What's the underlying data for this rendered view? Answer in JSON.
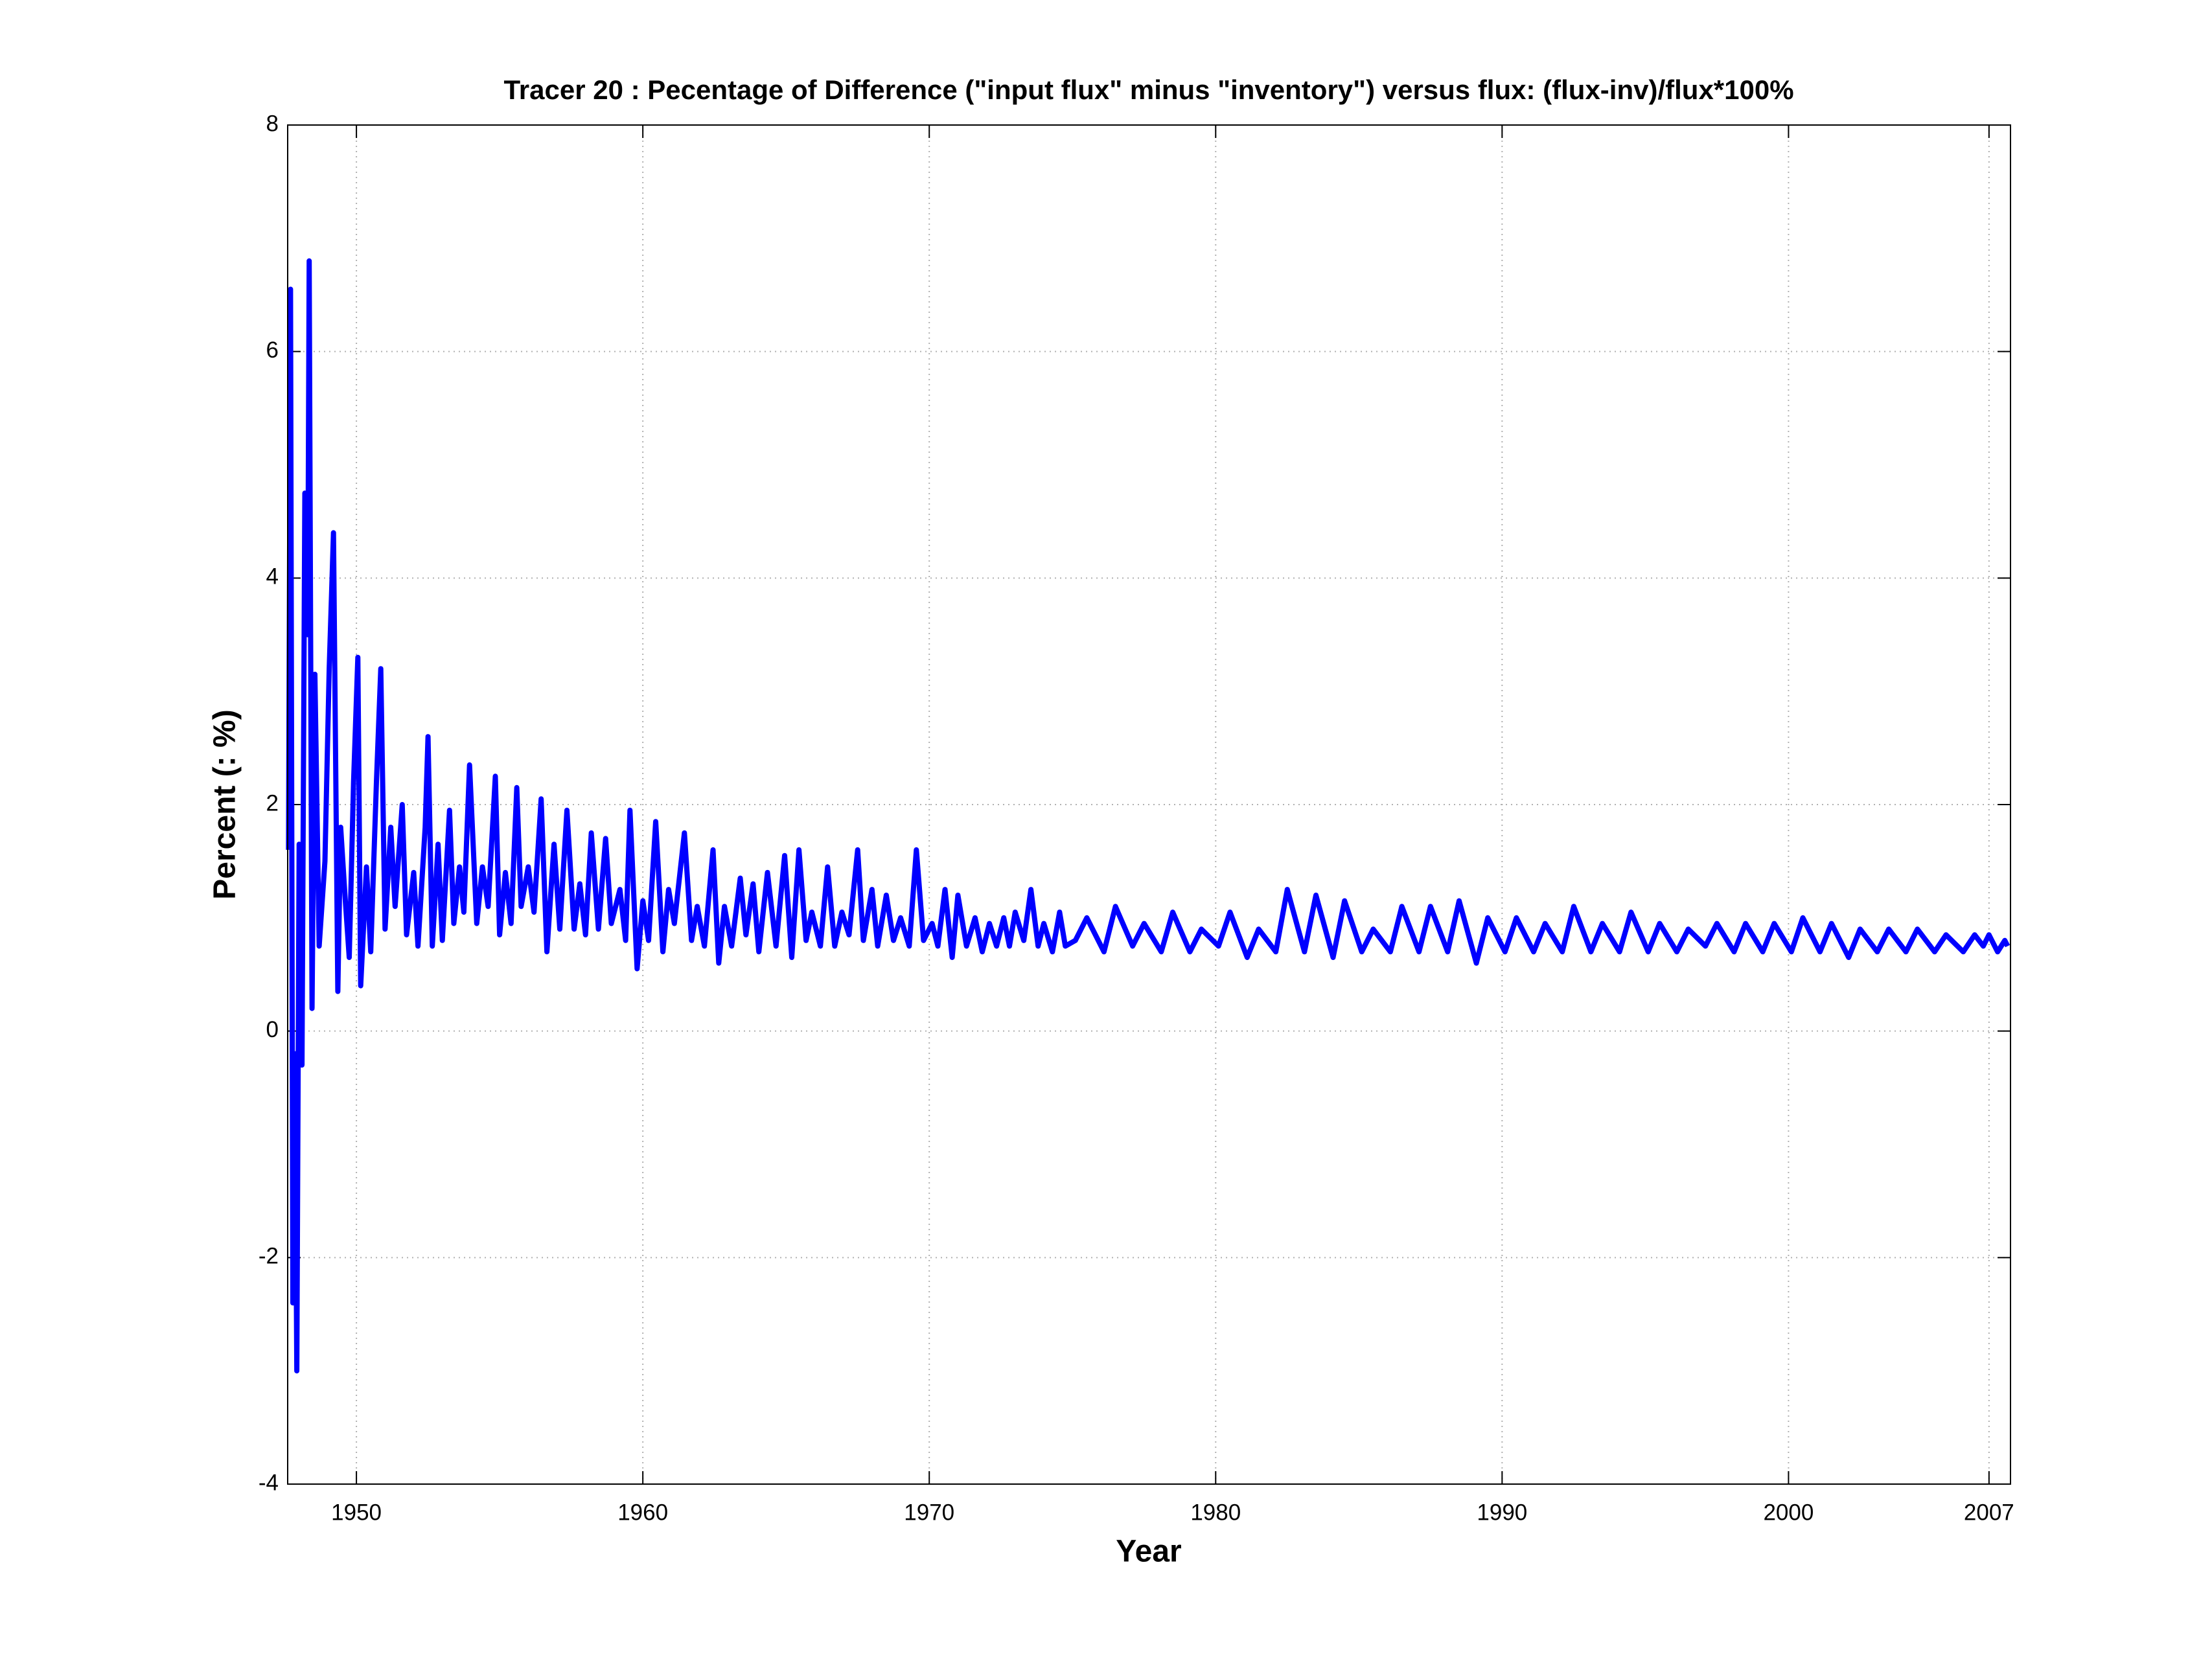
{
  "chart_data": {
    "type": "line",
    "title": "Tracer 20 : Pecentage of Difference (\"input flux\" minus \"inventory\") versus flux: (flux-inv)/flux*100%",
    "x_label": "Year",
    "y_label": "Percent (: %)",
    "xlim": [
      1947.6,
      2007.75
    ],
    "ylim": [
      -4,
      8
    ],
    "xticks": [
      1950,
      1960,
      1970,
      1980,
      1990,
      2000,
      2007
    ],
    "yticks": [
      -4,
      -2,
      0,
      2,
      4,
      6,
      8
    ],
    "grid": true,
    "series": [
      {
        "color": "#0000ff",
        "x": [
          1947.63,
          1947.7,
          1947.78,
          1947.85,
          1947.92,
          1948.0,
          1948.1,
          1948.2,
          1948.3,
          1948.35,
          1948.45,
          1948.55,
          1948.7,
          1948.9,
          1949.05,
          1949.2,
          1949.35,
          1949.45,
          1949.6,
          1949.75,
          1949.9,
          1950.05,
          1950.15,
          1950.35,
          1950.5,
          1950.7,
          1950.85,
          1951.0,
          1951.2,
          1951.35,
          1951.6,
          1951.75,
          1952.0,
          1952.15,
          1952.4,
          1952.5,
          1952.65,
          1952.85,
          1953.0,
          1953.25,
          1953.4,
          1953.6,
          1953.75,
          1953.95,
          1954.2,
          1954.4,
          1954.6,
          1954.85,
          1955.0,
          1955.2,
          1955.4,
          1955.6,
          1955.75,
          1956.0,
          1956.2,
          1956.45,
          1956.65,
          1956.9,
          1957.1,
          1957.35,
          1957.6,
          1957.8,
          1958.0,
          1958.2,
          1958.45,
          1958.7,
          1958.9,
          1959.2,
          1959.4,
          1959.55,
          1959.8,
          1960.0,
          1960.2,
          1960.45,
          1960.7,
          1960.9,
          1961.1,
          1961.45,
          1961.7,
          1961.9,
          1962.15,
          1962.45,
          1962.65,
          1962.85,
          1963.1,
          1963.4,
          1963.6,
          1963.85,
          1964.05,
          1964.35,
          1964.65,
          1964.95,
          1965.2,
          1965.45,
          1965.7,
          1965.9,
          1966.2,
          1966.45,
          1966.7,
          1966.95,
          1967.2,
          1967.5,
          1967.7,
          1968.0,
          1968.2,
          1968.5,
          1968.75,
          1969.0,
          1969.3,
          1969.55,
          1969.8,
          1970.1,
          1970.3,
          1970.55,
          1970.8,
          1971.0,
          1971.3,
          1971.6,
          1971.85,
          1972.1,
          1972.35,
          1972.6,
          1972.8,
          1973.0,
          1973.3,
          1973.55,
          1973.8,
          1974.0,
          1974.3,
          1974.55,
          1974.75,
          1975.1,
          1975.5,
          1976.1,
          1976.5,
          1977.1,
          1977.5,
          1978.1,
          1978.5,
          1979.1,
          1979.5,
          1980.1,
          1980.5,
          1981.1,
          1981.5,
          1982.1,
          1982.5,
          1983.1,
          1983.5,
          1984.1,
          1984.5,
          1985.1,
          1985.5,
          1986.1,
          1986.5,
          1987.1,
          1987.5,
          1988.1,
          1988.5,
          1989.1,
          1989.5,
          1990.1,
          1990.5,
          1991.1,
          1991.5,
          1992.1,
          1992.5,
          1993.1,
          1993.5,
          1994.1,
          1994.5,
          1995.1,
          1995.5,
          1996.1,
          1996.5,
          1997.1,
          1997.5,
          1998.1,
          1998.5,
          1999.1,
          1999.5,
          2000.1,
          2000.5,
          2001.1,
          2001.5,
          2002.1,
          2002.5,
          2003.1,
          2003.5,
          2004.1,
          2004.5,
          2005.1,
          2005.5,
          2006.1,
          2006.5,
          2006.8,
          2007.0,
          2007.3,
          2007.55,
          2007.65
        ],
        "values": [
          1.6,
          6.55,
          -2.4,
          -0.2,
          -3.0,
          1.65,
          -0.3,
          4.75,
          3.5,
          6.8,
          0.2,
          3.15,
          0.75,
          1.5,
          3.2,
          4.4,
          0.35,
          1.8,
          1.2,
          0.65,
          2.2,
          3.3,
          0.4,
          1.45,
          0.7,
          2.2,
          3.2,
          0.9,
          1.8,
          1.1,
          2.0,
          0.85,
          1.4,
          0.75,
          1.8,
          2.6,
          0.75,
          1.65,
          0.8,
          1.95,
          0.95,
          1.45,
          1.05,
          2.35,
          0.95,
          1.45,
          1.1,
          2.25,
          0.85,
          1.4,
          0.95,
          2.15,
          1.1,
          1.45,
          1.05,
          2.05,
          0.7,
          1.65,
          0.9,
          1.95,
          0.9,
          1.3,
          0.85,
          1.75,
          0.9,
          1.7,
          0.95,
          1.25,
          0.8,
          1.95,
          0.55,
          1.15,
          0.8,
          1.85,
          0.7,
          1.25,
          0.95,
          1.75,
          0.8,
          1.1,
          0.75,
          1.6,
          0.6,
          1.1,
          0.75,
          1.35,
          0.85,
          1.3,
          0.7,
          1.4,
          0.75,
          1.55,
          0.65,
          1.6,
          0.8,
          1.05,
          0.75,
          1.45,
          0.75,
          1.05,
          0.85,
          1.6,
          0.8,
          1.25,
          0.75,
          1.2,
          0.8,
          1.0,
          0.75,
          1.6,
          0.8,
          0.95,
          0.75,
          1.25,
          0.65,
          1.2,
          0.75,
          1.0,
          0.7,
          0.95,
          0.75,
          1.0,
          0.75,
          1.05,
          0.8,
          1.25,
          0.75,
          0.95,
          0.7,
          1.05,
          0.75,
          0.8,
          1.0,
          0.7,
          1.1,
          0.75,
          0.95,
          0.7,
          1.05,
          0.7,
          0.9,
          0.75,
          1.05,
          0.65,
          0.9,
          0.7,
          1.25,
          0.7,
          1.2,
          0.65,
          1.15,
          0.7,
          0.9,
          0.7,
          1.1,
          0.7,
          1.1,
          0.7,
          1.15,
          0.6,
          1.0,
          0.7,
          1.0,
          0.7,
          0.95,
          0.7,
          1.1,
          0.7,
          0.95,
          0.7,
          1.05,
          0.7,
          0.95,
          0.7,
          0.9,
          0.75,
          0.95,
          0.7,
          0.95,
          0.7,
          0.95,
          0.7,
          1.0,
          0.7,
          0.95,
          0.65,
          0.9,
          0.7,
          0.9,
          0.7,
          0.9,
          0.7,
          0.85,
          0.7,
          0.85,
          0.75,
          0.85,
          0.7,
          0.8,
          0.75
        ]
      }
    ]
  }
}
